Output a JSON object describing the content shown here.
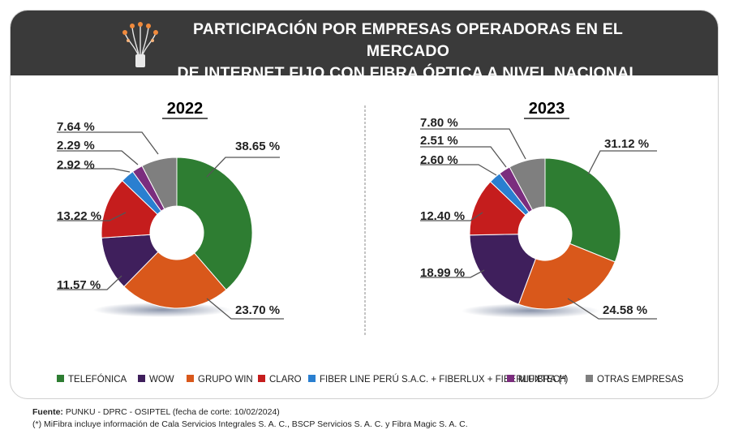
{
  "title_line1": "PARTICIPACIÓN POR EMPRESAS OPERADORAS EN EL MERCADO",
  "title_line2": "DE INTERNET FIJO CON FIBRA ÓPTICA A NIVEL NACIONAL",
  "colors": {
    "header_bg": "#3a3a3a",
    "telefonica": "#2e7d32",
    "wow": "#3f1f5c",
    "grupo_win": "#d9581b",
    "claro": "#c51d1d",
    "fiber_line": "#2a7fd0",
    "mifibra": "#7b2d7e",
    "otras": "#7f7f7f"
  },
  "chart_data": [
    {
      "type": "pie",
      "title": "2022",
      "categories": [
        "TELEFÓNICA",
        "GRUPO WIN",
        "WOW",
        "CLARO",
        "FIBER LINE PERÚ S.A.C. + FIBERLUX + FIBERLUXTECH",
        "MIFIBRA (*)",
        "OTRAS EMPRESAS"
      ],
      "values": [
        38.65,
        23.7,
        11.57,
        13.22,
        2.92,
        2.29,
        7.64
      ],
      "labels": [
        "38.65 %",
        "23.70 %",
        "11.57 %",
        "13.22 %",
        "2.92 %",
        "2.29 %",
        "7.64 %"
      ]
    },
    {
      "type": "pie",
      "title": "2023",
      "categories": [
        "TELEFÓNICA",
        "GRUPO WIN",
        "WOW",
        "CLARO",
        "FIBER LINE PERÚ S.A.C. + FIBERLUX + FIBERLUXTECH",
        "MIFIBRA (*)",
        "OTRAS EMPRESAS"
      ],
      "values": [
        31.12,
        24.58,
        18.99,
        12.4,
        2.6,
        2.51,
        7.8
      ],
      "labels": [
        "31.12 %",
        "24.58 %",
        "18.99 %",
        "12.40 %",
        "2.60 %",
        "2.51 %",
        "7.80 %"
      ]
    }
  ],
  "legend": [
    {
      "label": "TELEFÓNICA",
      "color": "#2e7d32"
    },
    {
      "label": "WOW",
      "color": "#3f1f5c"
    },
    {
      "label": "GRUPO WIN",
      "color": "#d9581b"
    },
    {
      "label": "CLARO",
      "color": "#c51d1d"
    },
    {
      "label": "FIBER LINE PERÚ S.A.C. + FIBERLUX + FIBERLUXTECH",
      "color": "#2a7fd0"
    },
    {
      "label": "MIFIBRA (*)",
      "color": "#7b2d7e"
    },
    {
      "label": "OTRAS EMPRESAS",
      "color": "#7f7f7f"
    }
  ],
  "footer": {
    "source_label": "Fuente:",
    "source_text": " PUNKU - DPRC - OSIPTEL (fecha de corte: 10/02/2024)",
    "note": "(*) MiFibra incluye información de Cala Servicios Integrales S. A. C., BSCP Servicios S. A. C. y Fibra Magic S. A. C."
  },
  "icons": {
    "header": "fiber-optic-icon"
  }
}
